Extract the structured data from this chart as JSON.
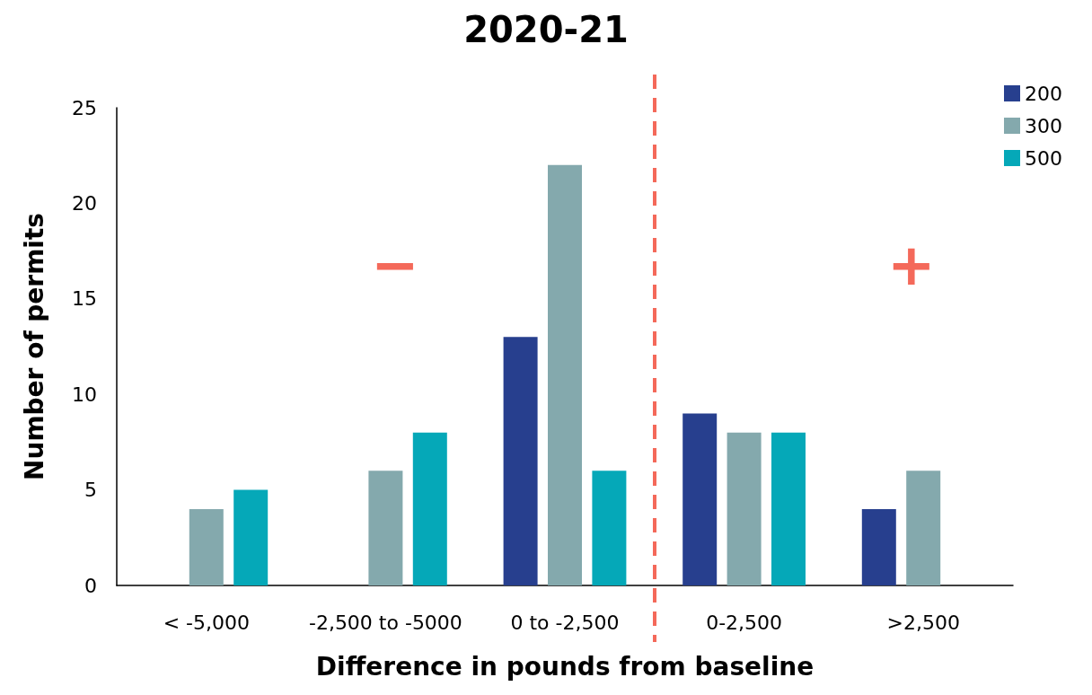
{
  "chart_data": {
    "type": "bar",
    "title": "2020-21",
    "xlabel": "Difference in pounds from baseline",
    "ylabel": "Number of permits",
    "categories": [
      "< -5,000",
      "-2,500 to -5000",
      "0 to -2,500",
      "0-2,500",
      ">2,500"
    ],
    "series": [
      {
        "name": "200",
        "color": "#273f8e",
        "values": [
          0,
          0,
          13,
          9,
          4
        ]
      },
      {
        "name": "300",
        "color": "#84a9ad",
        "values": [
          4,
          6,
          22,
          8,
          6
        ]
      },
      {
        "name": "500",
        "color": "#05a8b8",
        "values": [
          5,
          8,
          6,
          8,
          0
        ]
      }
    ],
    "ylim": [
      0,
      25
    ],
    "yticks": [
      0,
      5,
      10,
      15,
      20,
      25
    ],
    "grid": false,
    "legend": "top right",
    "annotations": [
      "−",
      "+"
    ]
  }
}
